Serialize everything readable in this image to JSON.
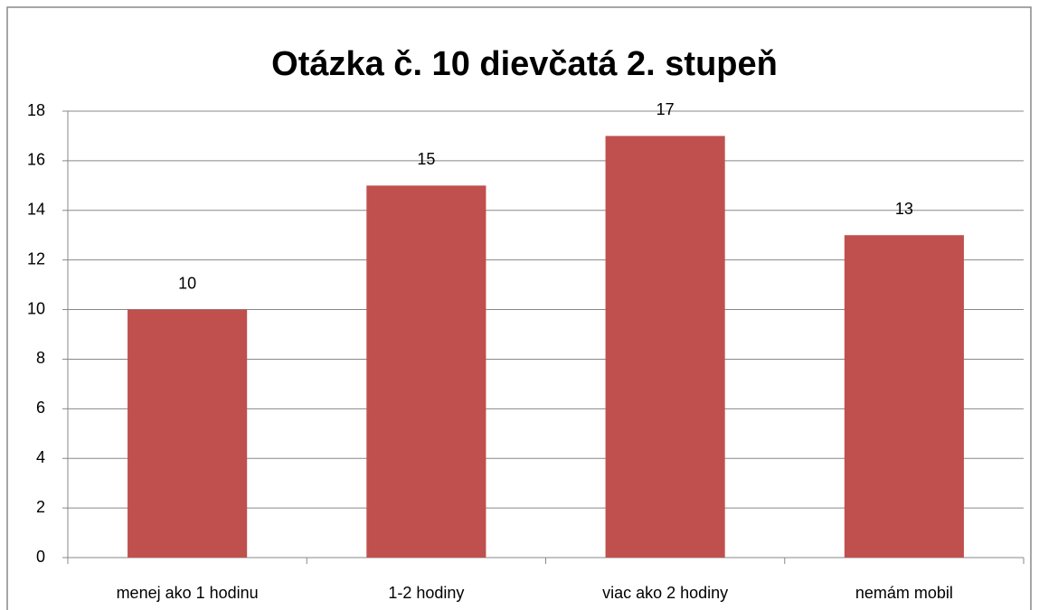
{
  "chart_data": {
    "type": "bar",
    "title": "Otázka č. 10 dievčatá 2. stupeň",
    "categories": [
      "menej ako 1 hodinu",
      "1-2 hodiny",
      "viac ako 2 hodiny",
      "nemám mobil"
    ],
    "values": [
      10,
      15,
      17,
      13
    ],
    "color": "#c0504d",
    "ylim": [
      0,
      18
    ],
    "yticks": [
      0,
      2,
      4,
      6,
      8,
      10,
      12,
      14,
      16,
      18
    ],
    "grid": true
  }
}
